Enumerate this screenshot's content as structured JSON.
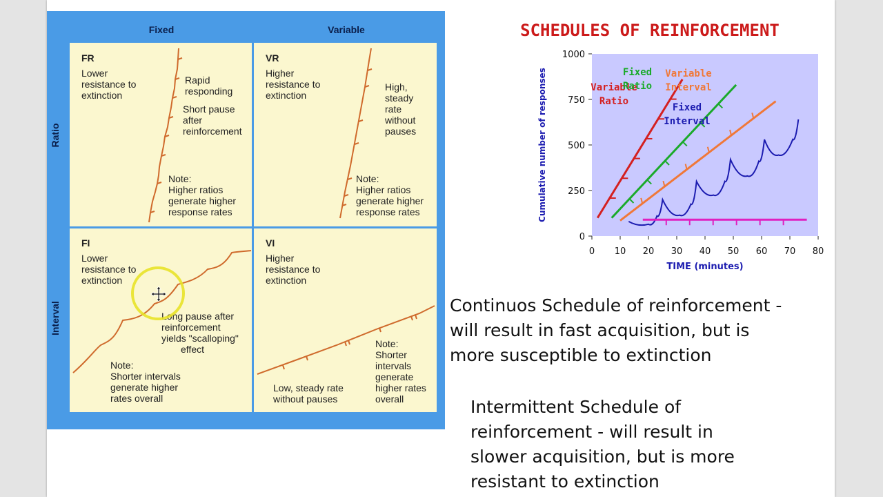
{
  "grid": {
    "col_headers": [
      "Fixed",
      "Variable"
    ],
    "row_headers": [
      "Ratio",
      "Interval"
    ],
    "panels": {
      "fr": {
        "code": "FR",
        "desc": [
          "Lower",
          "resistance to",
          "extinction"
        ],
        "note1": [
          "Rapid",
          "responding"
        ],
        "note2": [
          "Short pause",
          "after",
          "reinforcement"
        ],
        "note3": [
          "Note:",
          "Higher ratios",
          "generate higher",
          "response rates"
        ]
      },
      "vr": {
        "code": "VR",
        "desc": [
          "Higher",
          "resistance to",
          "extinction"
        ],
        "note1": [
          "High,",
          "steady",
          "rate",
          "without",
          "pauses"
        ],
        "note3": [
          "Note:",
          "Higher ratios",
          "generate higher",
          "response rates"
        ]
      },
      "fi": {
        "code": "FI",
        "desc": [
          "Lower",
          "resistance to",
          "extinction"
        ],
        "note1": [
          "Long pause after",
          "reinforcement",
          "yields \"scalloping\"",
          "effect"
        ],
        "note3": [
          "Note:",
          "Shorter intervals",
          "generate higher",
          "rates overall"
        ]
      },
      "vi": {
        "code": "VI",
        "desc": [
          "Higher",
          "resistance to",
          "extinction"
        ],
        "note1": [
          "Low, steady rate",
          "without pauses"
        ],
        "note3": [
          "Note:",
          "Shorter",
          "intervals",
          "generate",
          "higher rates",
          "overall"
        ]
      }
    }
  },
  "chart_data": {
    "type": "line",
    "title": "SCHEDULES OF REINFORCEMENT",
    "xlabel": "TIME (minutes)",
    "ylabel": "Cumulative number of responses",
    "xlim": [
      0,
      80
    ],
    "ylim": [
      0,
      1000
    ],
    "xticks": [
      0,
      10,
      20,
      30,
      40,
      50,
      60,
      70,
      80
    ],
    "yticks": [
      0,
      250,
      500,
      750,
      1000
    ],
    "grid": false,
    "series": [
      {
        "name": "Variable Ratio",
        "label_lines": [
          "Variable",
          "Ratio"
        ],
        "color": "#d42020",
        "x": [
          2,
          32
        ],
        "y": [
          100,
          860
        ]
      },
      {
        "name": "Fixed Ratio",
        "label_lines": [
          "Fixed",
          "Ratio"
        ],
        "color": "#1aaa2a",
        "x": [
          7,
          51
        ],
        "y": [
          100,
          830
        ]
      },
      {
        "name": "Variable Interval",
        "label_lines": [
          "Variable",
          "Interval"
        ],
        "color": "#f07838",
        "x": [
          10,
          65
        ],
        "y": [
          85,
          740
        ]
      },
      {
        "name": "Fixed Interval",
        "label_lines": [
          "Fixed",
          "Interval"
        ],
        "color": "#1c1cb0",
        "x": [
          13,
          20,
          23,
          25,
          31,
          35,
          37,
          43,
          47,
          49,
          55,
          59,
          61,
          66,
          71,
          73
        ],
        "y": [
          80,
          65,
          110,
          200,
          115,
          175,
          300,
          225,
          300,
          420,
          330,
          410,
          530,
          445,
          530,
          640
        ]
      },
      {
        "name": "Continuous baseline",
        "label_lines": [],
        "color": "#e020c0",
        "x": [
          18,
          76
        ],
        "y": [
          90,
          90
        ]
      }
    ]
  },
  "text": {
    "continuous": [
      "Continuos Schedule of reinforcement -",
      "will result in fast acquisition, but is",
      "more susceptible to extinction"
    ],
    "intermittent": [
      "Intermittent Schedule of",
      "reinforcement - will result in",
      "slower acquisition, but is more",
      "resistant to extinction"
    ]
  },
  "colors": {
    "grid_blue": "#4a9be6",
    "panel_cream": "#fbf7cf",
    "curve_orange": "#cf6a2c",
    "title_red": "#cc1a1a",
    "plot_bg": "#c9c9ff"
  }
}
